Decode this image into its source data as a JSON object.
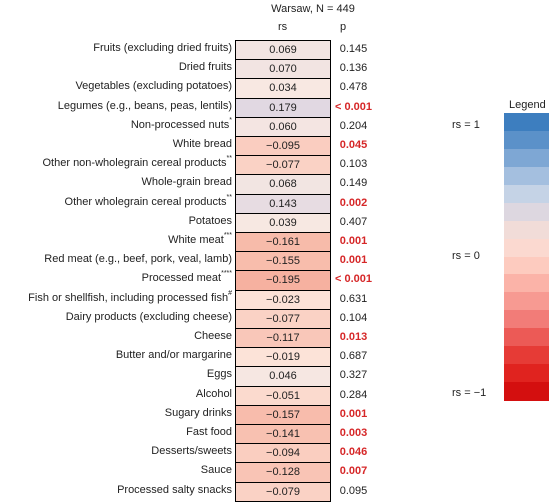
{
  "chart_data": {
    "type": "heatmap",
    "title": "Warsaw, N = 449",
    "columns": [
      "rs",
      "p"
    ],
    "rows": [
      {
        "label": "Fruits (excluding dried fruits)",
        "sup": "",
        "rs": "0.069",
        "p": "0.145",
        "sig": false,
        "rs_value": 0.069
      },
      {
        "label": "Dried fruits",
        "sup": "",
        "rs": "0.070",
        "p": "0.136",
        "sig": false,
        "rs_value": 0.07
      },
      {
        "label": "Vegetables (excluding potatoes)",
        "sup": "",
        "rs": "0.034",
        "p": "0.478",
        "sig": false,
        "rs_value": 0.034
      },
      {
        "label": "Legumes (e.g., beans, peas, lentils)",
        "sup": "",
        "rs": "0.179",
        "p": "< 0.001",
        "sig": true,
        "rs_value": 0.179
      },
      {
        "label": "Non-processed nuts",
        "sup": "*",
        "rs": "0.060",
        "p": "0.204",
        "sig": false,
        "rs_value": 0.06
      },
      {
        "label": "White bread",
        "sup": "",
        "rs": "−0.095",
        "p": "0.045",
        "sig": true,
        "rs_value": -0.095
      },
      {
        "label": "Other non-wholegrain cereal products",
        "sup": "**",
        "rs": "−0.077",
        "p": "0.103",
        "sig": false,
        "rs_value": -0.077
      },
      {
        "label": "Whole-grain bread",
        "sup": "",
        "rs": "0.068",
        "p": "0.149",
        "sig": false,
        "rs_value": 0.068
      },
      {
        "label": "Other wholegrain cereal products",
        "sup": "**",
        "rs": "0.143",
        "p": "0.002",
        "sig": true,
        "rs_value": 0.143
      },
      {
        "label": "Potatoes",
        "sup": "",
        "rs": "0.039",
        "p": "0.407",
        "sig": false,
        "rs_value": 0.039
      },
      {
        "label": "White meat",
        "sup": "***",
        "rs": "−0.161",
        "p": "0.001",
        "sig": true,
        "rs_value": -0.161
      },
      {
        "label": "Red meat (e.g., beef, pork, veal, lamb)",
        "sup": "",
        "rs": "−0.155",
        "p": "0.001",
        "sig": true,
        "rs_value": -0.155
      },
      {
        "label": "Processed meat",
        "sup": "****",
        "rs": "−0.195",
        "p": "< 0.001",
        "sig": true,
        "rs_value": -0.195
      },
      {
        "label": "Fish or shellfish, including processed fish",
        "sup": "#",
        "rs": "−0.023",
        "p": "0.631",
        "sig": false,
        "rs_value": -0.023
      },
      {
        "label": "Dairy products (excluding cheese)",
        "sup": "",
        "rs": "−0.077",
        "p": "0.104",
        "sig": false,
        "rs_value": -0.077
      },
      {
        "label": "Cheese",
        "sup": "",
        "rs": "−0.117",
        "p": "0.013",
        "sig": true,
        "rs_value": -0.117
      },
      {
        "label": "Butter and/or margarine",
        "sup": "",
        "rs": "−0.019",
        "p": "0.687",
        "sig": false,
        "rs_value": -0.019
      },
      {
        "label": "Eggs",
        "sup": "",
        "rs": "0.046",
        "p": "0.327",
        "sig": false,
        "rs_value": 0.046
      },
      {
        "label": "Alcohol",
        "sup": "",
        "rs": "−0.051",
        "p": "0.284",
        "sig": false,
        "rs_value": -0.051
      },
      {
        "label": "Sugary drinks",
        "sup": "",
        "rs": "−0.157",
        "p": "0.001",
        "sig": true,
        "rs_value": -0.157
      },
      {
        "label": "Fast food",
        "sup": "",
        "rs": "−0.141",
        "p": "0.003",
        "sig": true,
        "rs_value": -0.141
      },
      {
        "label": "Desserts/sweets",
        "sup": "",
        "rs": "−0.094",
        "p": "0.046",
        "sig": true,
        "rs_value": -0.094
      },
      {
        "label": "Sauce",
        "sup": "",
        "rs": "−0.128",
        "p": "0.007",
        "sig": true,
        "rs_value": -0.128
      },
      {
        "label": "Processed salty snacks",
        "sup": "",
        "rs": "−0.079",
        "p": "0.095",
        "sig": false,
        "rs_value": -0.079
      }
    ],
    "legend": {
      "title": "Legend",
      "labels": [
        "rs = 1",
        "rs = 0",
        "rs = −1"
      ],
      "colors": [
        "#3d7ebf",
        "#5b91c9",
        "#7ea7d4",
        "#a4bfdf",
        "#c5d3e6",
        "#ddd7e0",
        "#f1dcd8",
        "#fbd9d0",
        "#fdcbbf",
        "#fbb3a8",
        "#f79a92",
        "#f27c78",
        "#ec5a56",
        "#e63b36",
        "#e0231f",
        "#d40f0f"
      ]
    },
    "colors": {
      "positive": "#3d7ebf",
      "negative": "#d40f0f",
      "significant_text": "#d62728"
    }
  }
}
